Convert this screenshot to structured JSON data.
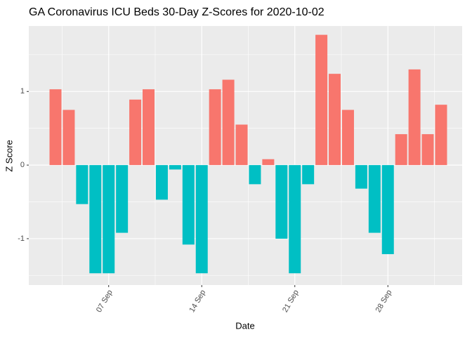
{
  "chart_data": {
    "type": "bar",
    "title": "GA Coronavirus ICU Beds 30-Day Z-Scores for 2020-10-02",
    "x_label": "Date",
    "y_label": "Z Score",
    "categories": [
      null,
      null,
      null,
      null,
      "07 Sep",
      null,
      null,
      null,
      null,
      null,
      null,
      "14 Sep",
      null,
      null,
      null,
      null,
      null,
      null,
      "21 Sep",
      null,
      null,
      null,
      null,
      null,
      null,
      "28 Sep",
      null,
      null,
      null,
      null
    ],
    "values": [
      1.03,
      0.75,
      -0.53,
      -1.47,
      -1.47,
      -0.92,
      0.89,
      1.03,
      -0.47,
      -0.06,
      -1.08,
      -1.47,
      1.03,
      1.16,
      0.55,
      -0.26,
      0.08,
      -1.0,
      -1.47,
      -0.26,
      1.77,
      1.24,
      0.75,
      -0.32,
      -0.92,
      -1.21,
      0.42,
      1.3,
      0.42,
      0.82
    ],
    "positive_color": "#F8766D",
    "negative_color": "#00BFC4",
    "ylim": [
      -1.63,
      1.89
    ],
    "yticks": [
      -1,
      0,
      1
    ],
    "grid": true
  }
}
